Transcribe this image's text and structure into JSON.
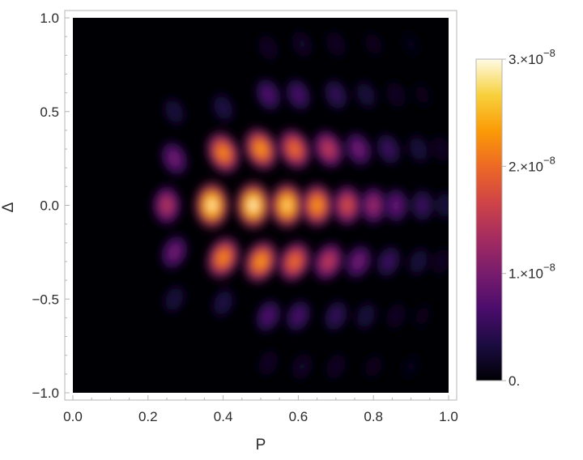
{
  "chart_data": {
    "type": "heatmap",
    "title": "",
    "xlabel": "P",
    "ylabel": "Δ",
    "xlim": [
      0.0,
      1.0
    ],
    "ylim": [
      -1.0,
      1.0
    ],
    "x_ticks": [
      {
        "value": 0.0,
        "label": "0.0"
      },
      {
        "value": 0.2,
        "label": "0.2"
      },
      {
        "value": 0.4,
        "label": "0.4"
      },
      {
        "value": 0.6,
        "label": "0.6"
      },
      {
        "value": 0.8,
        "label": "0.8"
      },
      {
        "value": 1.0,
        "label": "1.0"
      }
    ],
    "y_ticks": [
      {
        "value": 1.0,
        "label": "1.0"
      },
      {
        "value": 0.5,
        "label": "0.5"
      },
      {
        "value": 0.0,
        "label": "0.0"
      },
      {
        "value": -0.5,
        "label": "−0.5"
      },
      {
        "value": -1.0,
        "label": "−1.0"
      }
    ],
    "colorbar": {
      "range": [
        0,
        3e-08
      ],
      "ticks": [
        {
          "value": 3e-08,
          "mantissa": "3.×10",
          "exponent": "−8"
        },
        {
          "value": 2e-08,
          "mantissa": "2.×10",
          "exponent": "−8"
        },
        {
          "value": 1e-08,
          "mantissa": "1.×10",
          "exponent": "−8"
        },
        {
          "value": 0,
          "mantissa": "0.",
          "exponent": ""
        }
      ],
      "colormap": [
        "#000004",
        "#1b0c41",
        "#4a0c6b",
        "#781c6d",
        "#a52c60",
        "#cf4446",
        "#ed6925",
        "#fb9b06",
        "#f7d13d",
        "#fffbe6"
      ]
    },
    "frame_color": "#b4b4b4",
    "blobs": [
      {
        "x": 0.25,
        "y": 0.0,
        "value": 1.5e-08
      },
      {
        "x": 0.37,
        "y": 0.0,
        "value": 2.95e-08
      },
      {
        "x": 0.48,
        "y": 0.0,
        "value": 3e-08
      },
      {
        "x": 0.57,
        "y": 0.0,
        "value": 2.8e-08
      },
      {
        "x": 0.65,
        "y": 0.0,
        "value": 2.4e-08
      },
      {
        "x": 0.73,
        "y": 0.0,
        "value": 1.8e-08
      },
      {
        "x": 0.8,
        "y": 0.0,
        "value": 1.3e-08
      },
      {
        "x": 0.86,
        "y": 0.0,
        "value": 9e-09
      },
      {
        "x": 0.93,
        "y": 0.0,
        "value": 6e-09
      },
      {
        "x": 0.99,
        "y": 0.0,
        "value": 3.5e-09
      },
      {
        "x": 0.27,
        "y": 0.25,
        "value": 1e-08
      },
      {
        "x": 0.4,
        "y": 0.28,
        "value": 2.3e-08
      },
      {
        "x": 0.5,
        "y": 0.3,
        "value": 2.4e-08
      },
      {
        "x": 0.59,
        "y": 0.3,
        "value": 2.1e-08
      },
      {
        "x": 0.68,
        "y": 0.3,
        "value": 1.6e-08
      },
      {
        "x": 0.76,
        "y": 0.3,
        "value": 1e-08
      },
      {
        "x": 0.84,
        "y": 0.3,
        "value": 6e-09
      },
      {
        "x": 0.92,
        "y": 0.3,
        "value": 3.5e-09
      },
      {
        "x": 0.98,
        "y": 0.3,
        "value": 2e-09
      },
      {
        "x": 0.27,
        "y": -0.25,
        "value": 1e-08
      },
      {
        "x": 0.4,
        "y": -0.28,
        "value": 2.3e-08
      },
      {
        "x": 0.5,
        "y": -0.3,
        "value": 2.4e-08
      },
      {
        "x": 0.59,
        "y": -0.3,
        "value": 2.1e-08
      },
      {
        "x": 0.68,
        "y": -0.3,
        "value": 1.6e-08
      },
      {
        "x": 0.76,
        "y": -0.3,
        "value": 1e-08
      },
      {
        "x": 0.84,
        "y": -0.3,
        "value": 6e-09
      },
      {
        "x": 0.92,
        "y": -0.3,
        "value": 3.5e-09
      },
      {
        "x": 0.98,
        "y": -0.3,
        "value": 2e-09
      },
      {
        "x": 0.27,
        "y": 0.5,
        "value": 3.5e-09
      },
      {
        "x": 0.4,
        "y": 0.52,
        "value": 4e-09
      },
      {
        "x": 0.52,
        "y": 0.59,
        "value": 7.5e-09
      },
      {
        "x": 0.6,
        "y": 0.59,
        "value": 7e-09
      },
      {
        "x": 0.7,
        "y": 0.59,
        "value": 5.5e-09
      },
      {
        "x": 0.78,
        "y": 0.59,
        "value": 3.5e-09
      },
      {
        "x": 0.86,
        "y": 0.59,
        "value": 2e-09
      },
      {
        "x": 0.93,
        "y": 0.59,
        "value": 1.2e-09
      },
      {
        "x": 0.27,
        "y": -0.5,
        "value": 3.5e-09
      },
      {
        "x": 0.4,
        "y": -0.52,
        "value": 4e-09
      },
      {
        "x": 0.52,
        "y": -0.59,
        "value": 7.5e-09
      },
      {
        "x": 0.6,
        "y": -0.59,
        "value": 7e-09
      },
      {
        "x": 0.7,
        "y": -0.59,
        "value": 5.5e-09
      },
      {
        "x": 0.78,
        "y": -0.59,
        "value": 3.5e-09
      },
      {
        "x": 0.86,
        "y": -0.59,
        "value": 2e-09
      },
      {
        "x": 0.93,
        "y": -0.59,
        "value": 1.2e-09
      },
      {
        "x": 0.52,
        "y": 0.84,
        "value": 2e-09
      },
      {
        "x": 0.61,
        "y": 0.86,
        "value": 2.2e-09
      },
      {
        "x": 0.7,
        "y": 0.86,
        "value": 2e-09
      },
      {
        "x": 0.8,
        "y": 0.86,
        "value": 1.5e-09
      },
      {
        "x": 0.9,
        "y": 0.86,
        "value": 1e-09
      },
      {
        "x": 0.52,
        "y": -0.84,
        "value": 2e-09
      },
      {
        "x": 0.61,
        "y": -0.86,
        "value": 2.2e-09
      },
      {
        "x": 0.7,
        "y": -0.86,
        "value": 2e-09
      },
      {
        "x": 0.8,
        "y": -0.86,
        "value": 1.5e-09
      },
      {
        "x": 0.9,
        "y": -0.86,
        "value": 1e-09
      }
    ]
  }
}
